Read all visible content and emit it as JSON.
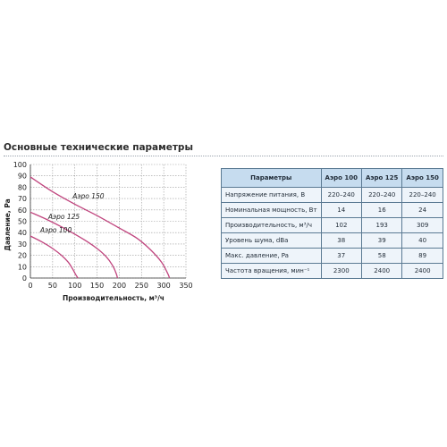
{
  "section_title": "Основные технические параметры",
  "chart_data": {
    "type": "line",
    "xlabel": "Производительность, м³/ч",
    "ylabel": "Давление, Pa",
    "xlim": [
      0,
      350
    ],
    "ylim": [
      0,
      100
    ],
    "xticks": [
      0,
      50,
      100,
      150,
      200,
      250,
      300,
      350
    ],
    "yticks": [
      0,
      10,
      20,
      30,
      40,
      50,
      60,
      70,
      80,
      90,
      100
    ],
    "grid": true,
    "series": [
      {
        "name": "Аэро 100",
        "x": [
          0,
          25,
          50,
          70,
          85,
          95,
          102,
          107
        ],
        "y": [
          37,
          32,
          26,
          20,
          14,
          8,
          3,
          0
        ]
      },
      {
        "name": "Аэро 125",
        "x": [
          0,
          40,
          80,
          120,
          150,
          170,
          185,
          193,
          196
        ],
        "y": [
          58,
          51,
          43,
          34,
          26,
          19,
          11,
          4,
          0
        ]
      },
      {
        "name": "Аэро 150",
        "x": [
          0,
          50,
          100,
          150,
          200,
          240,
          270,
          295,
          309,
          313
        ],
        "y": [
          89,
          76,
          65,
          55,
          44,
          35,
          25,
          14,
          4,
          0
        ]
      }
    ]
  },
  "table": {
    "headers": [
      "Параметры",
      "Аэро 100",
      "Аэро 125",
      "Аэро 150"
    ],
    "rows": [
      [
        "Напряжение питания, В",
        "220–240",
        "220–240",
        "220–240"
      ],
      [
        "Номинальная мощность, Вт",
        "14",
        "16",
        "24"
      ],
      [
        "Производительность, м³/ч",
        "102",
        "193",
        "309"
      ],
      [
        "Уровень шума, dBa",
        "38",
        "39",
        "40"
      ],
      [
        "Макс. давление, Pa",
        "37",
        "58",
        "89"
      ],
      [
        "Частота вращения, мин⁻¹",
        "2300",
        "2400",
        "2400"
      ]
    ]
  },
  "colors": {
    "curve": "#c0457e",
    "grid": "#9a9a9a",
    "table_header_bg": "#c6dcef",
    "table_cell_bg": "#eef4fa",
    "table_border": "#5b7a93"
  }
}
